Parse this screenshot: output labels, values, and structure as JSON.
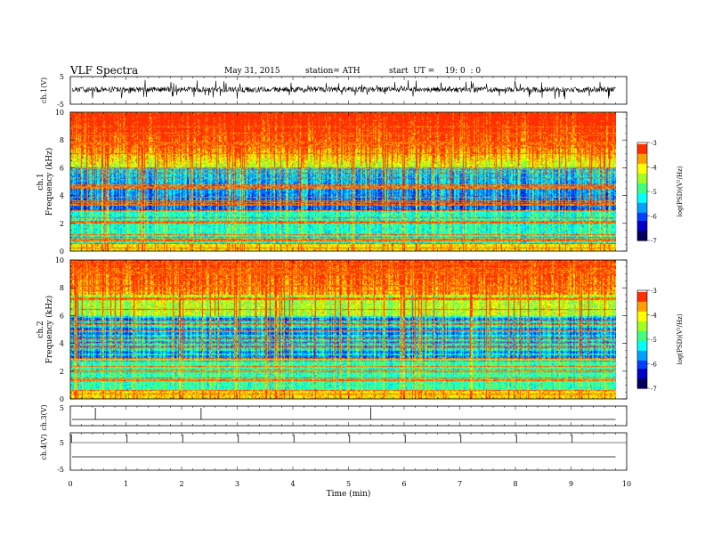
{
  "header": {
    "title": "VLF  Spectra",
    "date": "May 31, 2015",
    "station": "station= ATH",
    "start_ut": "start  UT =    19: 0  : 0"
  },
  "colors": {
    "scale": [
      "#000060",
      "#0000c8",
      "#0040ff",
      "#00a0ff",
      "#00ffff",
      "#40ff80",
      "#a0ff20",
      "#ffff00",
      "#ffa000",
      "#ff3000",
      "#ffffff"
    ]
  },
  "chart_data": [
    {
      "type": "line",
      "name": "ch1-waveform",
      "ylabel": "ch.1(V)",
      "ylim": [
        -5,
        5
      ],
      "yticks": [
        "5",
        "-5"
      ]
    },
    {
      "type": "heatmap",
      "name": "ch1-spectrogram",
      "ylabel": "ch.1",
      "ylabel2": "Frequency  (kHz)",
      "ylim": [
        0,
        10
      ],
      "yticks": [
        "0",
        "2",
        "4",
        "6",
        "8",
        "10"
      ],
      "colorbar": {
        "label": "log(PSD)(V²/Hz)",
        "ticks": [
          "-3",
          "-4",
          "-5",
          "-6",
          "-7"
        ],
        "range": [
          -7,
          -3
        ]
      }
    },
    {
      "type": "heatmap",
      "name": "ch2-spectrogram",
      "ylabel": "ch.2",
      "ylabel2": "Frequency  (kHz)",
      "ylim": [
        0,
        10
      ],
      "yticks": [
        "0",
        "2",
        "4",
        "6",
        "8",
        "10"
      ],
      "colorbar": {
        "label": "log(PSD)(V²/Hz)",
        "ticks": [
          "-3",
          "-4",
          "-5",
          "-6",
          "-7"
        ],
        "range": [
          -7,
          -3
        ]
      }
    },
    {
      "type": "line",
      "name": "ch3-waveform",
      "ylabel": "ch.3(V)",
      "yticks": [
        "5"
      ]
    },
    {
      "type": "line",
      "name": "ch4-waveform",
      "ylabel": "ch.4(V)",
      "yticks": [
        "5",
        "-5"
      ]
    }
  ],
  "x_axis": {
    "label": "Time  (min)",
    "range": [
      0,
      10
    ],
    "ticks": [
      "0",
      "1",
      "2",
      "3",
      "4",
      "5",
      "6",
      "7",
      "8",
      "9",
      "10"
    ],
    "data_end": 9.8
  }
}
